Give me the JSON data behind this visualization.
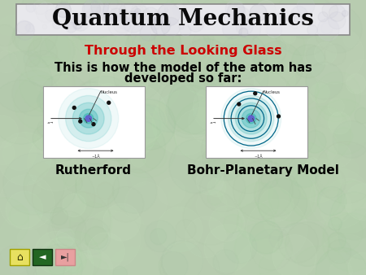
{
  "title": "Quantum Mechanics",
  "subtitle": "Through the Looking Glass",
  "subtitle_color": "#cc0000",
  "body_text_1": "This is how the model of the atom has",
  "body_text_2": "developed so far:",
  "body_color": "#000000",
  "bg_color": "#b8ccb0",
  "title_banner_color": "#e8e8ec",
  "label_left": "Rutherford",
  "label_right": "Bohr-Planetary Model",
  "label_color": "#000000",
  "glow_color": "#30b0b0",
  "orbit_color": "#006688",
  "nucleus_color": "#6060cc",
  "electron_color": "#111111",
  "btn_house_color": "#e8e060",
  "btn_back_color": "#226622",
  "btn_fwd_color": "#e8a0a0"
}
